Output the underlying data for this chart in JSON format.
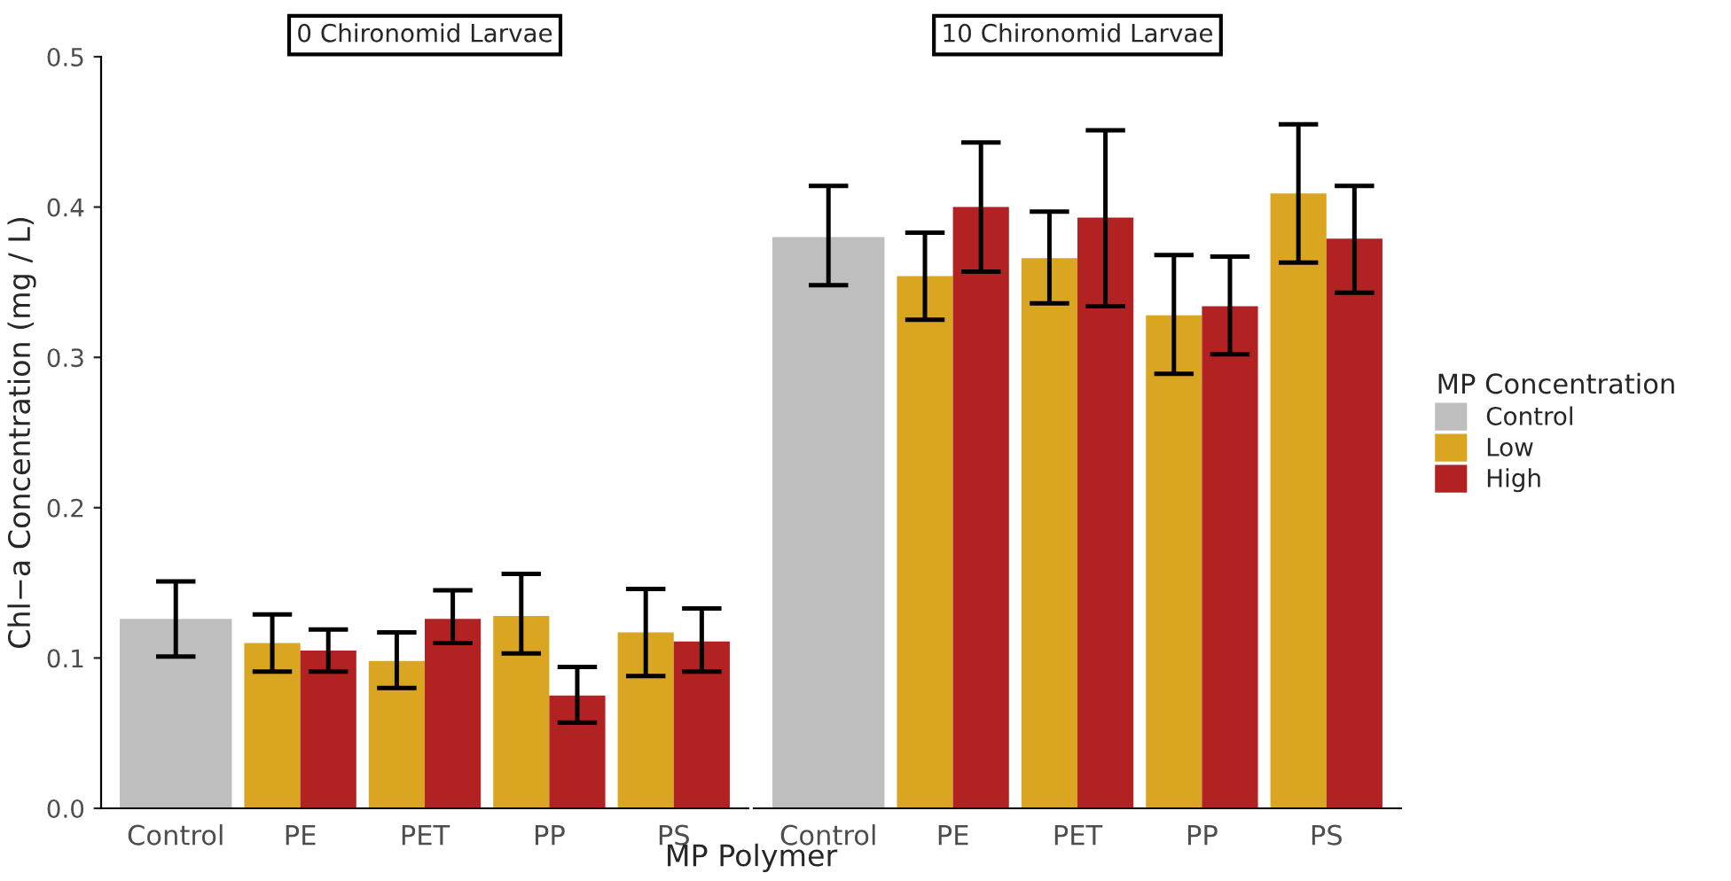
{
  "chart_data": [
    {
      "type": "bar",
      "title": "0 Chironomid Larvae",
      "xlabel": "MP Polymer",
      "ylabel": "Chl−a Concentration (mg / L)",
      "categories": [
        "Control",
        "PE",
        "PET",
        "PP",
        "PS"
      ],
      "series": [
        {
          "color": "#bebebe",
          "values": [
            0.126,
            null,
            null,
            null,
            null
          ],
          "errors": [
            [
              0.101,
              0.151
            ],
            null,
            null,
            null,
            null
          ]
        },
        {
          "color": "#daa520",
          "values": [
            null,
            0.11,
            0.098,
            0.128,
            0.117
          ],
          "errors": [
            null,
            [
              0.091,
              0.129
            ],
            [
              0.08,
              0.117
            ],
            [
              0.103,
              0.156
            ],
            [
              0.088,
              0.146
            ]
          ]
        },
        {
          "color": "#b22222",
          "values": [
            null,
            0.105,
            0.126,
            0.075,
            0.111
          ],
          "errors": [
            null,
            [
              0.091,
              0.119
            ],
            [
              0.11,
              0.145
            ],
            [
              0.057,
              0.094
            ],
            [
              0.091,
              0.133
            ]
          ]
        }
      ],
      "ylim": [
        0,
        0.5
      ],
      "yticks": [
        {
          "value": 0,
          "label": "0.0"
        },
        0.1,
        0.2,
        0.3,
        0.4,
        0.5
      ],
      "grid": false
    },
    {
      "type": "bar",
      "title": "10 Chironomid Larvae",
      "legend_title": "MP Concentration",
      "legend": "right",
      "tick_labels": "x",
      "categories": [
        "Control",
        "PE",
        "PET",
        "PP",
        "PS"
      ],
      "series": [
        {
          "name": "Control",
          "color": "#bebebe",
          "values": [
            0.38,
            null,
            null,
            null,
            null
          ],
          "errors": [
            [
              0.348,
              0.414
            ],
            null,
            null,
            null,
            null
          ]
        },
        {
          "name": "Low",
          "color": "#daa520",
          "values": [
            null,
            0.354,
            0.366,
            0.328,
            0.409
          ],
          "errors": [
            null,
            [
              0.325,
              0.383
            ],
            [
              0.336,
              0.397
            ],
            [
              0.289,
              0.368
            ],
            [
              0.363,
              0.455
            ]
          ]
        },
        {
          "name": "High",
          "color": "#b22222",
          "values": [
            null,
            0.4,
            0.393,
            0.334,
            0.379
          ],
          "errors": [
            null,
            [
              0.357,
              0.443
            ],
            [
              0.334,
              0.451
            ],
            [
              0.302,
              0.367
            ],
            [
              0.343,
              0.414
            ]
          ]
        }
      ],
      "ylim": [
        0,
        0.5
      ],
      "grid": false
    }
  ]
}
